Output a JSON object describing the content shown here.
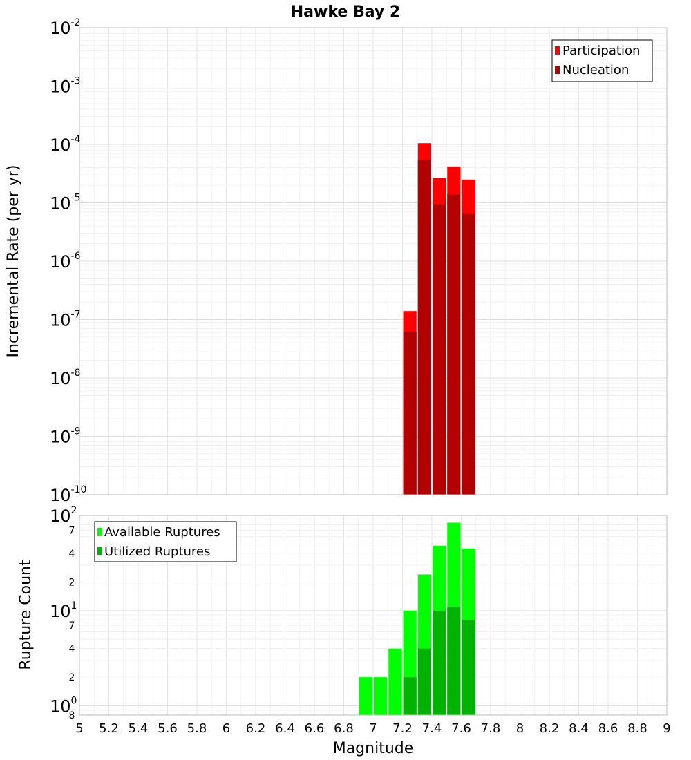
{
  "chart_data": [
    {
      "type": "bar",
      "title": "Hawke Bay 2",
      "ylabel": "Incremental Rate (per yr)",
      "yscale": "log",
      "ylim": [
        1e-10,
        0.01
      ],
      "xlim": [
        5,
        9
      ],
      "ytick_labels": [
        {
          "base": "10",
          "exp": "-2"
        },
        {
          "base": "10",
          "exp": "-3"
        },
        {
          "base": "10",
          "exp": "-4"
        },
        {
          "base": "10",
          "exp": "-5"
        },
        {
          "base": "10",
          "exp": "-6"
        },
        {
          "base": "10",
          "exp": "-7"
        },
        {
          "base": "10",
          "exp": "-8"
        },
        {
          "base": "10",
          "exp": "-9"
        },
        {
          "base": "10",
          "exp": "-10"
        }
      ],
      "x": [
        7.25,
        7.35,
        7.45,
        7.55,
        7.65
      ],
      "series": [
        {
          "name": "Participation",
          "color": "#ff0000",
          "values": [
            1.4e-07,
            0.000105,
            2.7e-05,
            4.2e-05,
            2.5e-05
          ]
        },
        {
          "name": "Nucleation",
          "color": "#b30000",
          "values": [
            6.2e-08,
            5.5e-05,
            9.5e-06,
            1.4e-05,
            6.5e-06
          ]
        }
      ],
      "legend": "top-right"
    },
    {
      "type": "bar",
      "ylabel": "Rupture Count",
      "xlabel": "Magnitude",
      "yscale": "log",
      "ylim": [
        0.8,
        100
      ],
      "xlim": [
        5,
        9
      ],
      "xticks": [
        "5",
        "5.2",
        "5.4",
        "5.6",
        "5.8",
        "6",
        "6.2",
        "6.4",
        "6.6",
        "6.8",
        "7",
        "7.2",
        "7.4",
        "7.6",
        "7.8",
        "8",
        "8.2",
        "8.4",
        "8.6",
        "8.8",
        "9"
      ],
      "ytick_labels": [
        {
          "base": "10",
          "exp": "2"
        },
        {
          "base": "10",
          "exp": "1"
        },
        {
          "base": "10",
          "exp": "0"
        }
      ],
      "minor_tick_labels": [
        "7",
        "4",
        "2",
        "7",
        "4",
        "2",
        "8"
      ],
      "x": [
        6.95,
        7.05,
        7.15,
        7.25,
        7.35,
        7.45,
        7.55,
        7.65
      ],
      "series": [
        {
          "name": "Available Ruptures",
          "color": "#00ff00",
          "values": [
            2,
            2,
            4,
            10,
            24,
            48,
            84,
            45
          ]
        },
        {
          "name": "Utilized Ruptures",
          "color": "#00b300",
          "values": [
            0,
            0,
            0,
            2,
            4,
            10,
            11,
            8
          ]
        }
      ],
      "legend": "top-left"
    }
  ]
}
